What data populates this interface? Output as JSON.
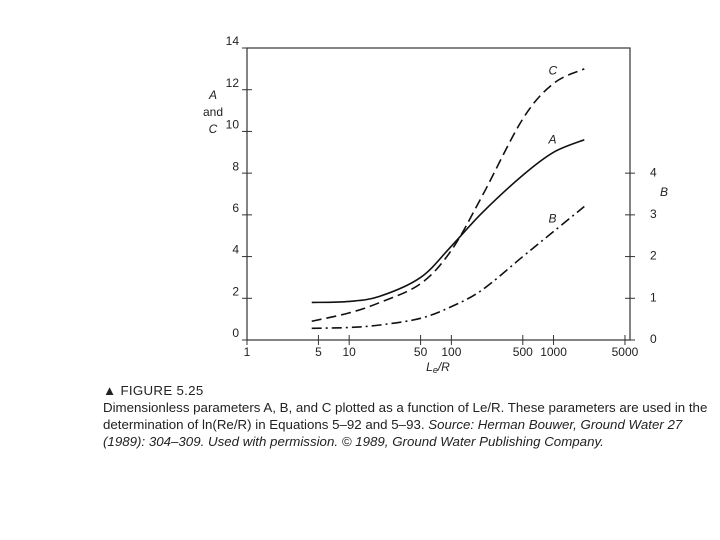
{
  "chart_data": {
    "type": "line",
    "x_label": {
      "main": "L",
      "sub": "e",
      "rest": "/R"
    },
    "y_label": [
      "A",
      "and",
      "C"
    ],
    "y2_label": "B",
    "x": [
      4.3,
      10,
      20,
      50,
      100,
      200,
      500,
      1000,
      2000
    ],
    "series": [
      {
        "name": "A",
        "color": "#111111",
        "style": "solid",
        "values": [
          1.8,
          1.85,
          2.1,
          3.0,
          4.5,
          6.1,
          7.9,
          9.0,
          9.6
        ]
      },
      {
        "name": "C",
        "color": "#111111",
        "style": "dashed",
        "values": [
          0.9,
          1.3,
          1.8,
          2.7,
          4.3,
          6.9,
          10.6,
          12.3,
          13.0
        ]
      },
      {
        "name": "B",
        "color": "#111111",
        "style": "dashdot",
        "axis": "y2",
        "values": [
          0.28,
          0.3,
          0.36,
          0.52,
          0.8,
          1.2,
          2.0,
          2.6,
          3.2
        ]
      }
    ],
    "xlog": true,
    "xlim": [
      1,
      5600
    ],
    "xticks": [
      1,
      5,
      10,
      50,
      100,
      500,
      1000,
      5000
    ],
    "ylim": [
      0,
      14
    ],
    "yticks": [
      0,
      2,
      4,
      6,
      8,
      10,
      12,
      14
    ],
    "y2lim": [
      0,
      7
    ],
    "y2ticks": [
      0,
      1,
      2,
      3,
      4
    ]
  },
  "caption": {
    "figure": "▲ FIGURE 5.25",
    "text": "Dimensionless parameters A, B, and C plotted as a function of Le/R. These parameters are used in the determination of ln(Re/R) in Equations 5–92 and 5–93. ",
    "source": "Source: Herman Bouwer, Ground Water 27 (1989): 304–309. Used with permission. © 1989, Ground Water Publishing Company."
  }
}
